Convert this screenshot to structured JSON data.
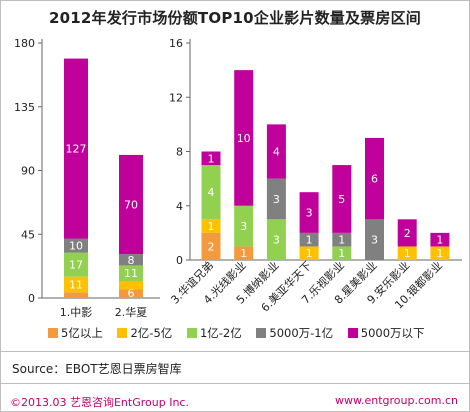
{
  "title": "2012年发行市场份额TOP10企业影片数量及票房区间",
  "colors": {
    "s1": "#F39A3E",
    "s2": "#FFC000",
    "s3": "#92D050",
    "s4": "#808080",
    "s5": "#C0009A"
  },
  "chart_data": [
    {
      "type": "bar",
      "stacked": true,
      "categories": [
        "1.中影",
        "2.华夏"
      ],
      "series": [
        {
          "name": "5亿以上",
          "values": [
            4,
            6
          ]
        },
        {
          "name": "2亿-5亿",
          "values": [
            11,
            6
          ]
        },
        {
          "name": "1亿-2亿",
          "values": [
            17,
            11
          ]
        },
        {
          "name": "5000万-1亿",
          "values": [
            10,
            8
          ]
        },
        {
          "name": "5000万以下",
          "values": [
            127,
            70
          ]
        }
      ],
      "data_labels": [
        [
          "",
          "11",
          "17",
          "10",
          "127"
        ],
        [
          "6",
          "",
          "11",
          "8",
          "70"
        ]
      ],
      "yticks": [
        0,
        45,
        90,
        135,
        180
      ],
      "ylim": [
        0,
        180
      ],
      "grid": false
    },
    {
      "type": "bar",
      "stacked": true,
      "categories": [
        "3.华谊兄弟",
        "4.光线影业",
        "5.博纳影业",
        "6.美亚华天下",
        "7.乐视影业",
        "8.星美影业",
        "9.安乐影业",
        "10.银都影业"
      ],
      "series": [
        {
          "name": "5亿以上",
          "values": [
            2,
            1,
            0,
            0,
            0,
            0,
            0,
            0
          ]
        },
        {
          "name": "2亿-5亿",
          "values": [
            1,
            0,
            0,
            1,
            0,
            0,
            1,
            1
          ]
        },
        {
          "name": "1亿-2亿",
          "values": [
            4,
            3,
            3,
            0,
            1,
            0,
            0,
            0
          ]
        },
        {
          "name": "5000万-1亿",
          "values": [
            0,
            0,
            3,
            1,
            1,
            3,
            0,
            0
          ]
        },
        {
          "name": "5000万以下",
          "values": [
            1,
            10,
            4,
            3,
            5,
            6,
            2,
            1
          ]
        }
      ],
      "data_labels": [
        [
          "2",
          "1",
          "4",
          "",
          "1"
        ],
        [
          "1",
          "",
          "3",
          "",
          "10"
        ],
        [
          "",
          "",
          "3",
          "3",
          "4"
        ],
        [
          "",
          "1",
          "",
          "1",
          "3"
        ],
        [
          "",
          "",
          "1",
          "1",
          "5"
        ],
        [
          "",
          "",
          "",
          "3",
          "6"
        ],
        [
          "",
          "1",
          "",
          "",
          "2"
        ],
        [
          "",
          "1",
          "",
          "",
          "1"
        ]
      ],
      "yticks": [
        0,
        4,
        8,
        12,
        16
      ],
      "ylim": [
        0,
        16
      ],
      "grid": false
    }
  ],
  "legend": [
    "5亿以上",
    "2亿-5亿",
    "1亿-2亿",
    "5000万-1亿",
    "5000万以下"
  ],
  "source": "Source：EBOT艺恩日票房智库",
  "copyright": "©2013.03  艺恩咨询EntGroup Inc.",
  "website": "www.entgroup.com.cn"
}
